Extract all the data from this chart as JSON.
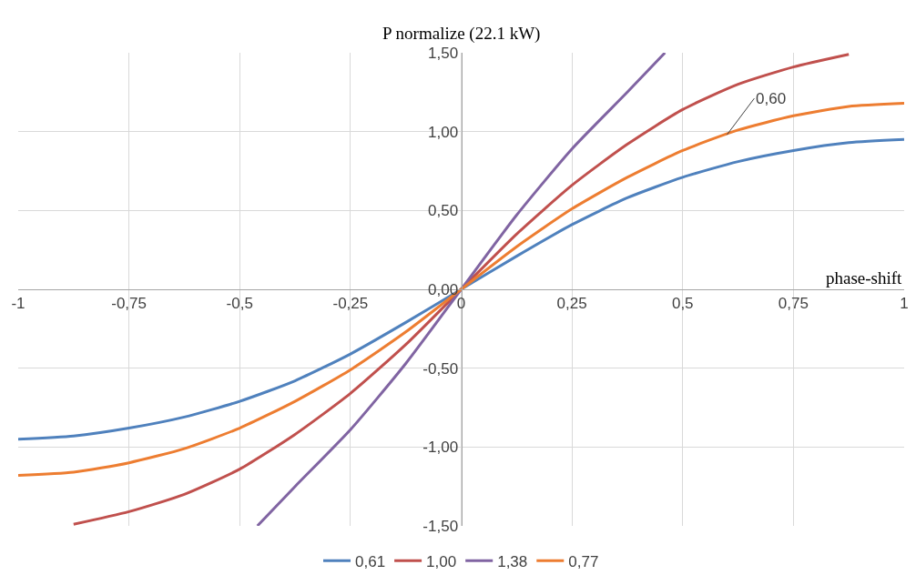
{
  "chart_data": {
    "type": "line",
    "ylabel": "P normalize (22.1 kW)",
    "xlabel": "phase-shift",
    "xlim": [
      -1,
      1
    ],
    "ylim": [
      -1.5,
      1.5
    ],
    "xticks": [
      -1,
      {
        "value": -0.75,
        "label": "-0,75"
      },
      {
        "value": -0.5,
        "label": "-0,5"
      },
      {
        "value": -0.25,
        "label": "-0,25"
      },
      0,
      {
        "value": 0.25,
        "label": "0,25"
      },
      {
        "value": 0.5,
        "label": "0,5"
      },
      {
        "value": 0.75,
        "label": "0,75"
      },
      1
    ],
    "yticks": [
      {
        "value": -1.5,
        "label": "-1,50"
      },
      {
        "value": -1,
        "label": "-1,00"
      },
      {
        "value": -0.5,
        "label": "-0,50"
      },
      {
        "value": 0,
        "label": "0,00"
      },
      {
        "value": 0.5,
        "label": "0,50"
      },
      {
        "value": 1,
        "label": "1,00"
      },
      {
        "value": 1.5,
        "label": "1,50"
      }
    ],
    "grid": true,
    "legend": "bottom",
    "line_style": "solid",
    "series": [
      {
        "name": "0,61",
        "color": "#4f81bd",
        "x": [
          -1,
          -0.875,
          -0.75,
          -0.625,
          -0.5,
          -0.375,
          -0.25,
          -0.125,
          0,
          0.125,
          0.25,
          0.375,
          0.5,
          0.625,
          0.75,
          0.875,
          1
        ],
        "values": [
          -0.95,
          -0.93,
          -0.88,
          -0.81,
          -0.71,
          -0.58,
          -0.41,
          -0.21,
          0,
          0.21,
          0.41,
          0.58,
          0.71,
          0.81,
          0.88,
          0.93,
          0.95
        ]
      },
      {
        "name": "1,00",
        "color": "#c0504d",
        "x": [
          -0.875,
          -0.75,
          -0.625,
          -0.5,
          -0.375,
          -0.25,
          -0.125,
          0,
          0.125,
          0.25,
          0.375,
          0.5,
          0.625,
          0.75,
          0.875
        ],
        "values": [
          -1.49,
          -1.41,
          -1.3,
          -1.14,
          -0.92,
          -0.66,
          -0.35,
          0,
          0.35,
          0.66,
          0.92,
          1.14,
          1.3,
          1.41,
          1.49
        ]
      },
      {
        "name": "1,38",
        "color": "#8064a2",
        "x": [
          -0.46,
          -0.375,
          -0.25,
          -0.125,
          0,
          0.125,
          0.25,
          0.375,
          0.46
        ],
        "values": [
          -1.5,
          -1.25,
          -0.89,
          -0.47,
          0,
          0.47,
          0.89,
          1.25,
          1.5
        ]
      },
      {
        "name": "0,77",
        "color": "#ed7d31",
        "x": [
          -1,
          -0.875,
          -0.75,
          -0.625,
          -0.5,
          -0.375,
          -0.25,
          -0.125,
          0,
          0.125,
          0.25,
          0.375,
          0.5,
          0.625,
          0.75,
          0.875,
          1
        ],
        "values": [
          -1.18,
          -1.16,
          -1.1,
          -1.01,
          -0.88,
          -0.71,
          -0.51,
          -0.27,
          0,
          0.27,
          0.51,
          0.71,
          0.88,
          1.01,
          1.1,
          1.16,
          1.18
        ]
      }
    ],
    "annotations": [
      {
        "text": "0,60",
        "x": 0.6,
        "y": 0.98
      }
    ]
  }
}
